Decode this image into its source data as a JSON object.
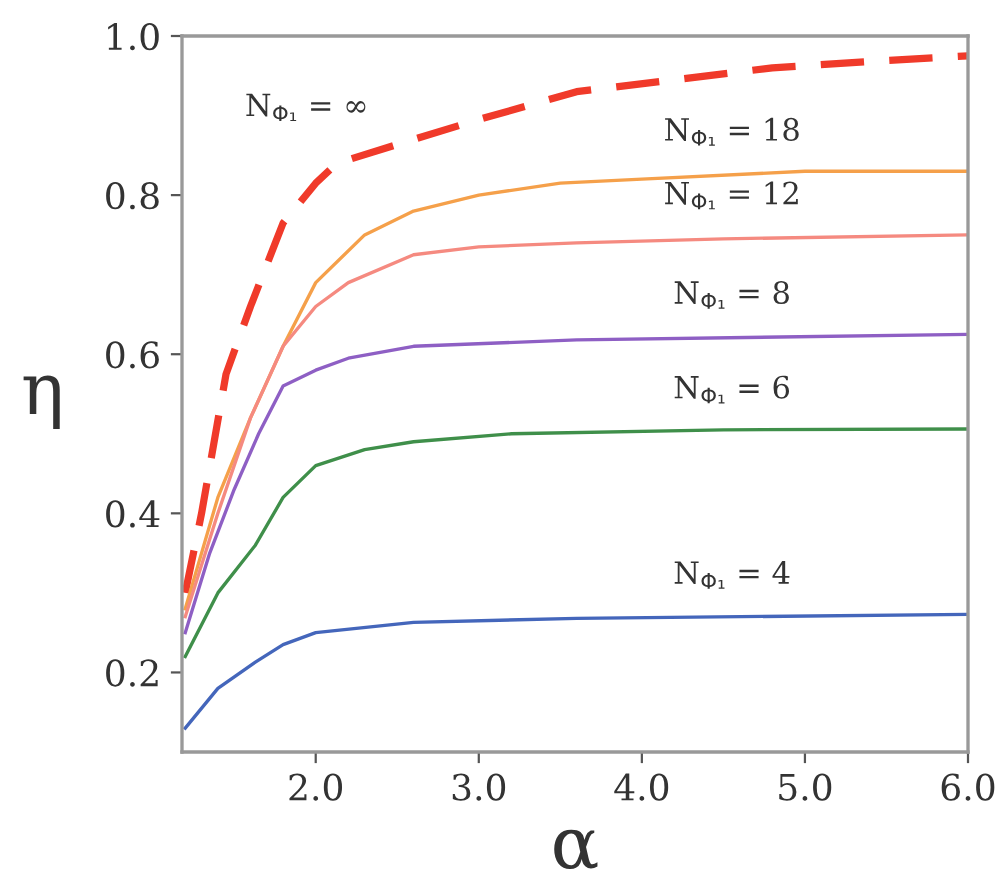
{
  "chart_data": {
    "type": "line",
    "xlabel": "α",
    "ylabel": "η",
    "xlim": [
      1.18,
      6.0
    ],
    "ylim": [
      0.1,
      1.0
    ],
    "xticks": [
      {
        "value": 2.0,
        "label": "2.0"
      },
      {
        "value": 3.0,
        "label": "3.0"
      },
      {
        "value": 4.0,
        "label": "4.0"
      },
      {
        "value": 5.0,
        "label": "5.0"
      },
      {
        "value": 6.0,
        "label": "6.0"
      }
    ],
    "yticks": [
      0.2,
      0.4,
      0.6,
      0.8,
      {
        "value": 1.0,
        "label": "1.0"
      }
    ],
    "grid": false,
    "marker": "none",
    "series": [
      {
        "color": "#f03a2a",
        "line_style": "dashed",
        "x": [
          1.2,
          1.3,
          1.45,
          1.6,
          1.8,
          2.0,
          2.13,
          2.6,
          3.0,
          3.6,
          4.2,
          4.8,
          5.4,
          6.0
        ],
        "values": [
          0.3,
          0.4,
          0.575,
          0.66,
          0.765,
          0.815,
          0.84,
          0.87,
          0.895,
          0.93,
          0.945,
          0.96,
          0.968,
          0.975
        ]
      },
      {
        "color": "#f5a04a",
        "line_style": "solid",
        "x": [
          1.2,
          1.4,
          1.6,
          1.8,
          2.0,
          2.3,
          2.6,
          3.0,
          3.5,
          4.0,
          5.0,
          6.0
        ],
        "values": [
          0.28,
          0.42,
          0.52,
          0.61,
          0.69,
          0.75,
          0.78,
          0.8,
          0.815,
          0.82,
          0.83,
          0.83
        ]
      },
      {
        "color": "#f58a80",
        "line_style": "solid",
        "x": [
          1.2,
          1.4,
          1.6,
          1.8,
          2.0,
          2.2,
          2.6,
          3.0,
          3.6,
          4.5,
          6.0
        ],
        "values": [
          0.27,
          0.4,
          0.52,
          0.61,
          0.66,
          0.69,
          0.725,
          0.735,
          0.74,
          0.745,
          0.75
        ]
      },
      {
        "color": "#8e5fc4",
        "line_style": "solid",
        "x": [
          1.2,
          1.35,
          1.5,
          1.65,
          1.8,
          2.0,
          2.2,
          2.6,
          3.6,
          6.0
        ],
        "values": [
          0.25,
          0.35,
          0.43,
          0.5,
          0.56,
          0.58,
          0.595,
          0.61,
          0.618,
          0.625
        ]
      },
      {
        "color": "#3f8f4a",
        "line_style": "solid",
        "x": [
          1.2,
          1.4,
          1.63,
          1.8,
          2.0,
          2.3,
          2.6,
          3.2,
          4.5,
          6.0
        ],
        "values": [
          0.22,
          0.3,
          0.36,
          0.42,
          0.46,
          0.48,
          0.49,
          0.5,
          0.505,
          0.506
        ]
      },
      {
        "color": "#4466bb",
        "line_style": "solid",
        "x": [
          1.2,
          1.4,
          1.63,
          1.8,
          2.0,
          2.6,
          3.6,
          6.0
        ],
        "values": [
          0.13,
          0.18,
          0.213,
          0.235,
          0.25,
          0.263,
          0.268,
          0.273
        ]
      }
    ],
    "annotations": [
      "N$_{Φ₁}$ = ∞",
      "N$_{Φ₁}$ = 18",
      "N$_{Φ₁}$ = 12",
      "N$_{Φ₁}$ = 8",
      "N$_{Φ₁}$ = 6",
      "N$_{Φ₁}$ = 4"
    ]
  }
}
